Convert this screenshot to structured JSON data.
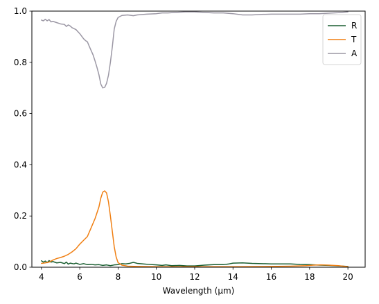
{
  "chart_data": {
    "type": "line",
    "title": "",
    "xlabel": "Wavelength (µm)",
    "ylabel": "",
    "xlim": [
      3.5,
      20.9
    ],
    "ylim": [
      0,
      1
    ],
    "xticks": [
      4,
      6,
      8,
      10,
      12,
      14,
      16,
      18,
      20
    ],
    "yticks": [
      0.0,
      0.2,
      0.4,
      0.6,
      0.8,
      1.0
    ],
    "xtick_labels": [
      "4",
      "6",
      "8",
      "10",
      "12",
      "14",
      "16",
      "18",
      "20"
    ],
    "ytick_labels": [
      "0.0",
      "0.2",
      "0.4",
      "0.6",
      "0.8",
      "1.0"
    ],
    "grid": false,
    "legend": "top-right",
    "series": [
      {
        "name": "R",
        "color": "#1a5e31",
        "points": [
          [
            4.0,
            0.025
          ],
          [
            4.1,
            0.02
          ],
          [
            4.2,
            0.024
          ],
          [
            4.3,
            0.018
          ],
          [
            4.4,
            0.026
          ],
          [
            4.5,
            0.02
          ],
          [
            4.6,
            0.022
          ],
          [
            4.8,
            0.017
          ],
          [
            5.0,
            0.019
          ],
          [
            5.2,
            0.014
          ],
          [
            5.3,
            0.02
          ],
          [
            5.4,
            0.012
          ],
          [
            5.5,
            0.016
          ],
          [
            5.7,
            0.013
          ],
          [
            5.8,
            0.016
          ],
          [
            6.0,
            0.011
          ],
          [
            6.2,
            0.014
          ],
          [
            6.4,
            0.01
          ],
          [
            6.6,
            0.011
          ],
          [
            6.8,
            0.009
          ],
          [
            7.0,
            0.01
          ],
          [
            7.2,
            0.007
          ],
          [
            7.4,
            0.009
          ],
          [
            7.6,
            0.006
          ],
          [
            7.8,
            0.009
          ],
          [
            8.0,
            0.01
          ],
          [
            8.2,
            0.014
          ],
          [
            8.4,
            0.013
          ],
          [
            8.6,
            0.015
          ],
          [
            8.8,
            0.019
          ],
          [
            9.0,
            0.015
          ],
          [
            9.3,
            0.013
          ],
          [
            9.6,
            0.011
          ],
          [
            10.0,
            0.009
          ],
          [
            10.3,
            0.007
          ],
          [
            10.5,
            0.009
          ],
          [
            10.8,
            0.006
          ],
          [
            11.2,
            0.007
          ],
          [
            11.6,
            0.005
          ],
          [
            12.0,
            0.005
          ],
          [
            12.5,
            0.008
          ],
          [
            13.0,
            0.01
          ],
          [
            13.5,
            0.01
          ],
          [
            13.8,
            0.013
          ],
          [
            14.0,
            0.016
          ],
          [
            14.5,
            0.017
          ],
          [
            15.0,
            0.015
          ],
          [
            15.5,
            0.014
          ],
          [
            16.0,
            0.013
          ],
          [
            16.5,
            0.013
          ],
          [
            17.0,
            0.013
          ],
          [
            17.5,
            0.011
          ],
          [
            18.0,
            0.01
          ],
          [
            18.5,
            0.008
          ],
          [
            19.0,
            0.007
          ],
          [
            19.5,
            0.005
          ],
          [
            20.0,
            0.003
          ]
        ]
      },
      {
        "name": "T",
        "color": "#f07f12",
        "points": [
          [
            4.0,
            0.015
          ],
          [
            4.2,
            0.017
          ],
          [
            4.4,
            0.02
          ],
          [
            4.6,
            0.028
          ],
          [
            4.8,
            0.034
          ],
          [
            5.0,
            0.038
          ],
          [
            5.2,
            0.043
          ],
          [
            5.4,
            0.05
          ],
          [
            5.6,
            0.06
          ],
          [
            5.8,
            0.072
          ],
          [
            6.0,
            0.09
          ],
          [
            6.2,
            0.105
          ],
          [
            6.4,
            0.12
          ],
          [
            6.6,
            0.155
          ],
          [
            6.8,
            0.19
          ],
          [
            7.0,
            0.235
          ],
          [
            7.1,
            0.27
          ],
          [
            7.2,
            0.293
          ],
          [
            7.3,
            0.298
          ],
          [
            7.4,
            0.29
          ],
          [
            7.5,
            0.255
          ],
          [
            7.6,
            0.2
          ],
          [
            7.7,
            0.14
          ],
          [
            7.8,
            0.08
          ],
          [
            7.9,
            0.04
          ],
          [
            8.0,
            0.018
          ],
          [
            8.2,
            0.008
          ],
          [
            8.5,
            0.004
          ],
          [
            9.0,
            0.003
          ],
          [
            10.0,
            0.002
          ],
          [
            12.0,
            0.002
          ],
          [
            14.0,
            0.002
          ],
          [
            16.0,
            0.003
          ],
          [
            17.0,
            0.004
          ],
          [
            17.8,
            0.006
          ],
          [
            18.2,
            0.008
          ],
          [
            18.6,
            0.009
          ],
          [
            19.0,
            0.008
          ],
          [
            19.5,
            0.006
          ],
          [
            20.0,
            0.002
          ]
        ]
      },
      {
        "name": "A",
        "color": "#9b97a4",
        "points": [
          [
            4.0,
            0.965
          ],
          [
            4.1,
            0.962
          ],
          [
            4.2,
            0.968
          ],
          [
            4.3,
            0.962
          ],
          [
            4.4,
            0.967
          ],
          [
            4.5,
            0.958
          ],
          [
            4.6,
            0.96
          ],
          [
            4.8,
            0.955
          ],
          [
            5.0,
            0.95
          ],
          [
            5.2,
            0.948
          ],
          [
            5.3,
            0.94
          ],
          [
            5.4,
            0.946
          ],
          [
            5.5,
            0.942
          ],
          [
            5.6,
            0.935
          ],
          [
            5.8,
            0.928
          ],
          [
            6.0,
            0.912
          ],
          [
            6.2,
            0.892
          ],
          [
            6.3,
            0.885
          ],
          [
            6.4,
            0.88
          ],
          [
            6.5,
            0.862
          ],
          [
            6.6,
            0.845
          ],
          [
            6.7,
            0.828
          ],
          [
            6.8,
            0.805
          ],
          [
            6.9,
            0.78
          ],
          [
            7.0,
            0.752
          ],
          [
            7.1,
            0.715
          ],
          [
            7.2,
            0.7
          ],
          [
            7.3,
            0.702
          ],
          [
            7.4,
            0.718
          ],
          [
            7.5,
            0.75
          ],
          [
            7.6,
            0.8
          ],
          [
            7.7,
            0.86
          ],
          [
            7.8,
            0.93
          ],
          [
            7.9,
            0.96
          ],
          [
            8.0,
            0.975
          ],
          [
            8.2,
            0.983
          ],
          [
            8.5,
            0.985
          ],
          [
            8.8,
            0.982
          ],
          [
            9.0,
            0.985
          ],
          [
            9.5,
            0.988
          ],
          [
            10.0,
            0.99
          ],
          [
            10.3,
            0.993
          ],
          [
            10.6,
            0.993
          ],
          [
            11.0,
            0.995
          ],
          [
            11.5,
            0.997
          ],
          [
            12.0,
            0.997
          ],
          [
            12.5,
            0.995
          ],
          [
            13.0,
            0.993
          ],
          [
            13.5,
            0.993
          ],
          [
            14.0,
            0.99
          ],
          [
            14.5,
            0.985
          ],
          [
            15.0,
            0.985
          ],
          [
            15.5,
            0.987
          ],
          [
            16.0,
            0.988
          ],
          [
            16.5,
            0.988
          ],
          [
            17.0,
            0.988
          ],
          [
            17.5,
            0.988
          ],
          [
            18.0,
            0.99
          ],
          [
            18.5,
            0.99
          ],
          [
            19.0,
            0.992
          ],
          [
            19.5,
            0.994
          ],
          [
            20.0,
            0.997
          ]
        ]
      }
    ]
  }
}
